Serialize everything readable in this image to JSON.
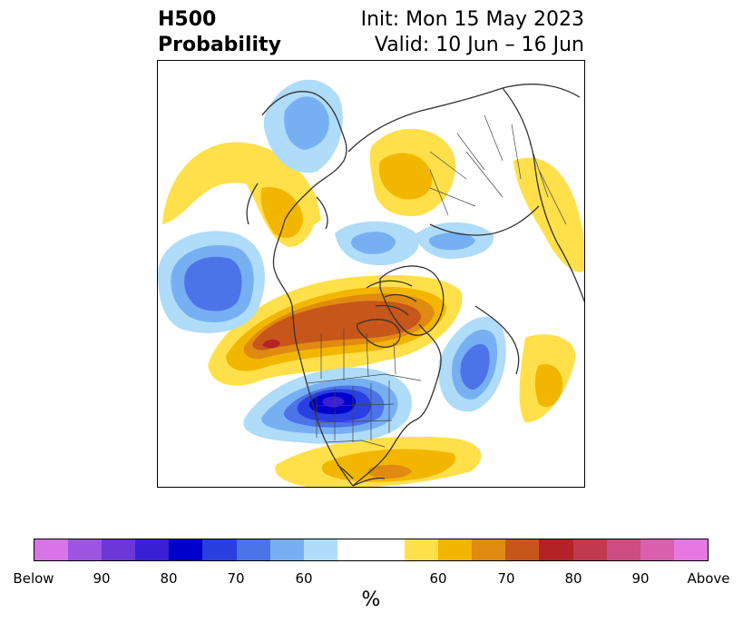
{
  "title": {
    "variable": "H500",
    "product": "Probability",
    "init": "Init: Mon 15 May 2023",
    "valid": "Valid: 10 Jun – 16 Jun"
  },
  "colorbar": {
    "segments": [
      "#d774e8",
      "#9b55e0",
      "#6b37d6",
      "#3b1fd4",
      "#0000cc",
      "#2a3fe0",
      "#4d73e8",
      "#77b0f2",
      "#aedcf9",
      "#ffffff",
      "#ffe04a",
      "#f3b600",
      "#e08a12",
      "#c7561a",
      "#b22226",
      "#c0394d",
      "#cc4d7f",
      "#da60ad",
      "#e777e3"
    ],
    "labels": [
      "Below",
      "90",
      "80",
      "70",
      "60",
      "60",
      "70",
      "80",
      "90",
      "Above"
    ],
    "unit": "%"
  },
  "map": {
    "features": [
      "north-america-coastlines",
      "greenland",
      "eurasia",
      "us-state-borders",
      "canada-provinces"
    ]
  }
}
